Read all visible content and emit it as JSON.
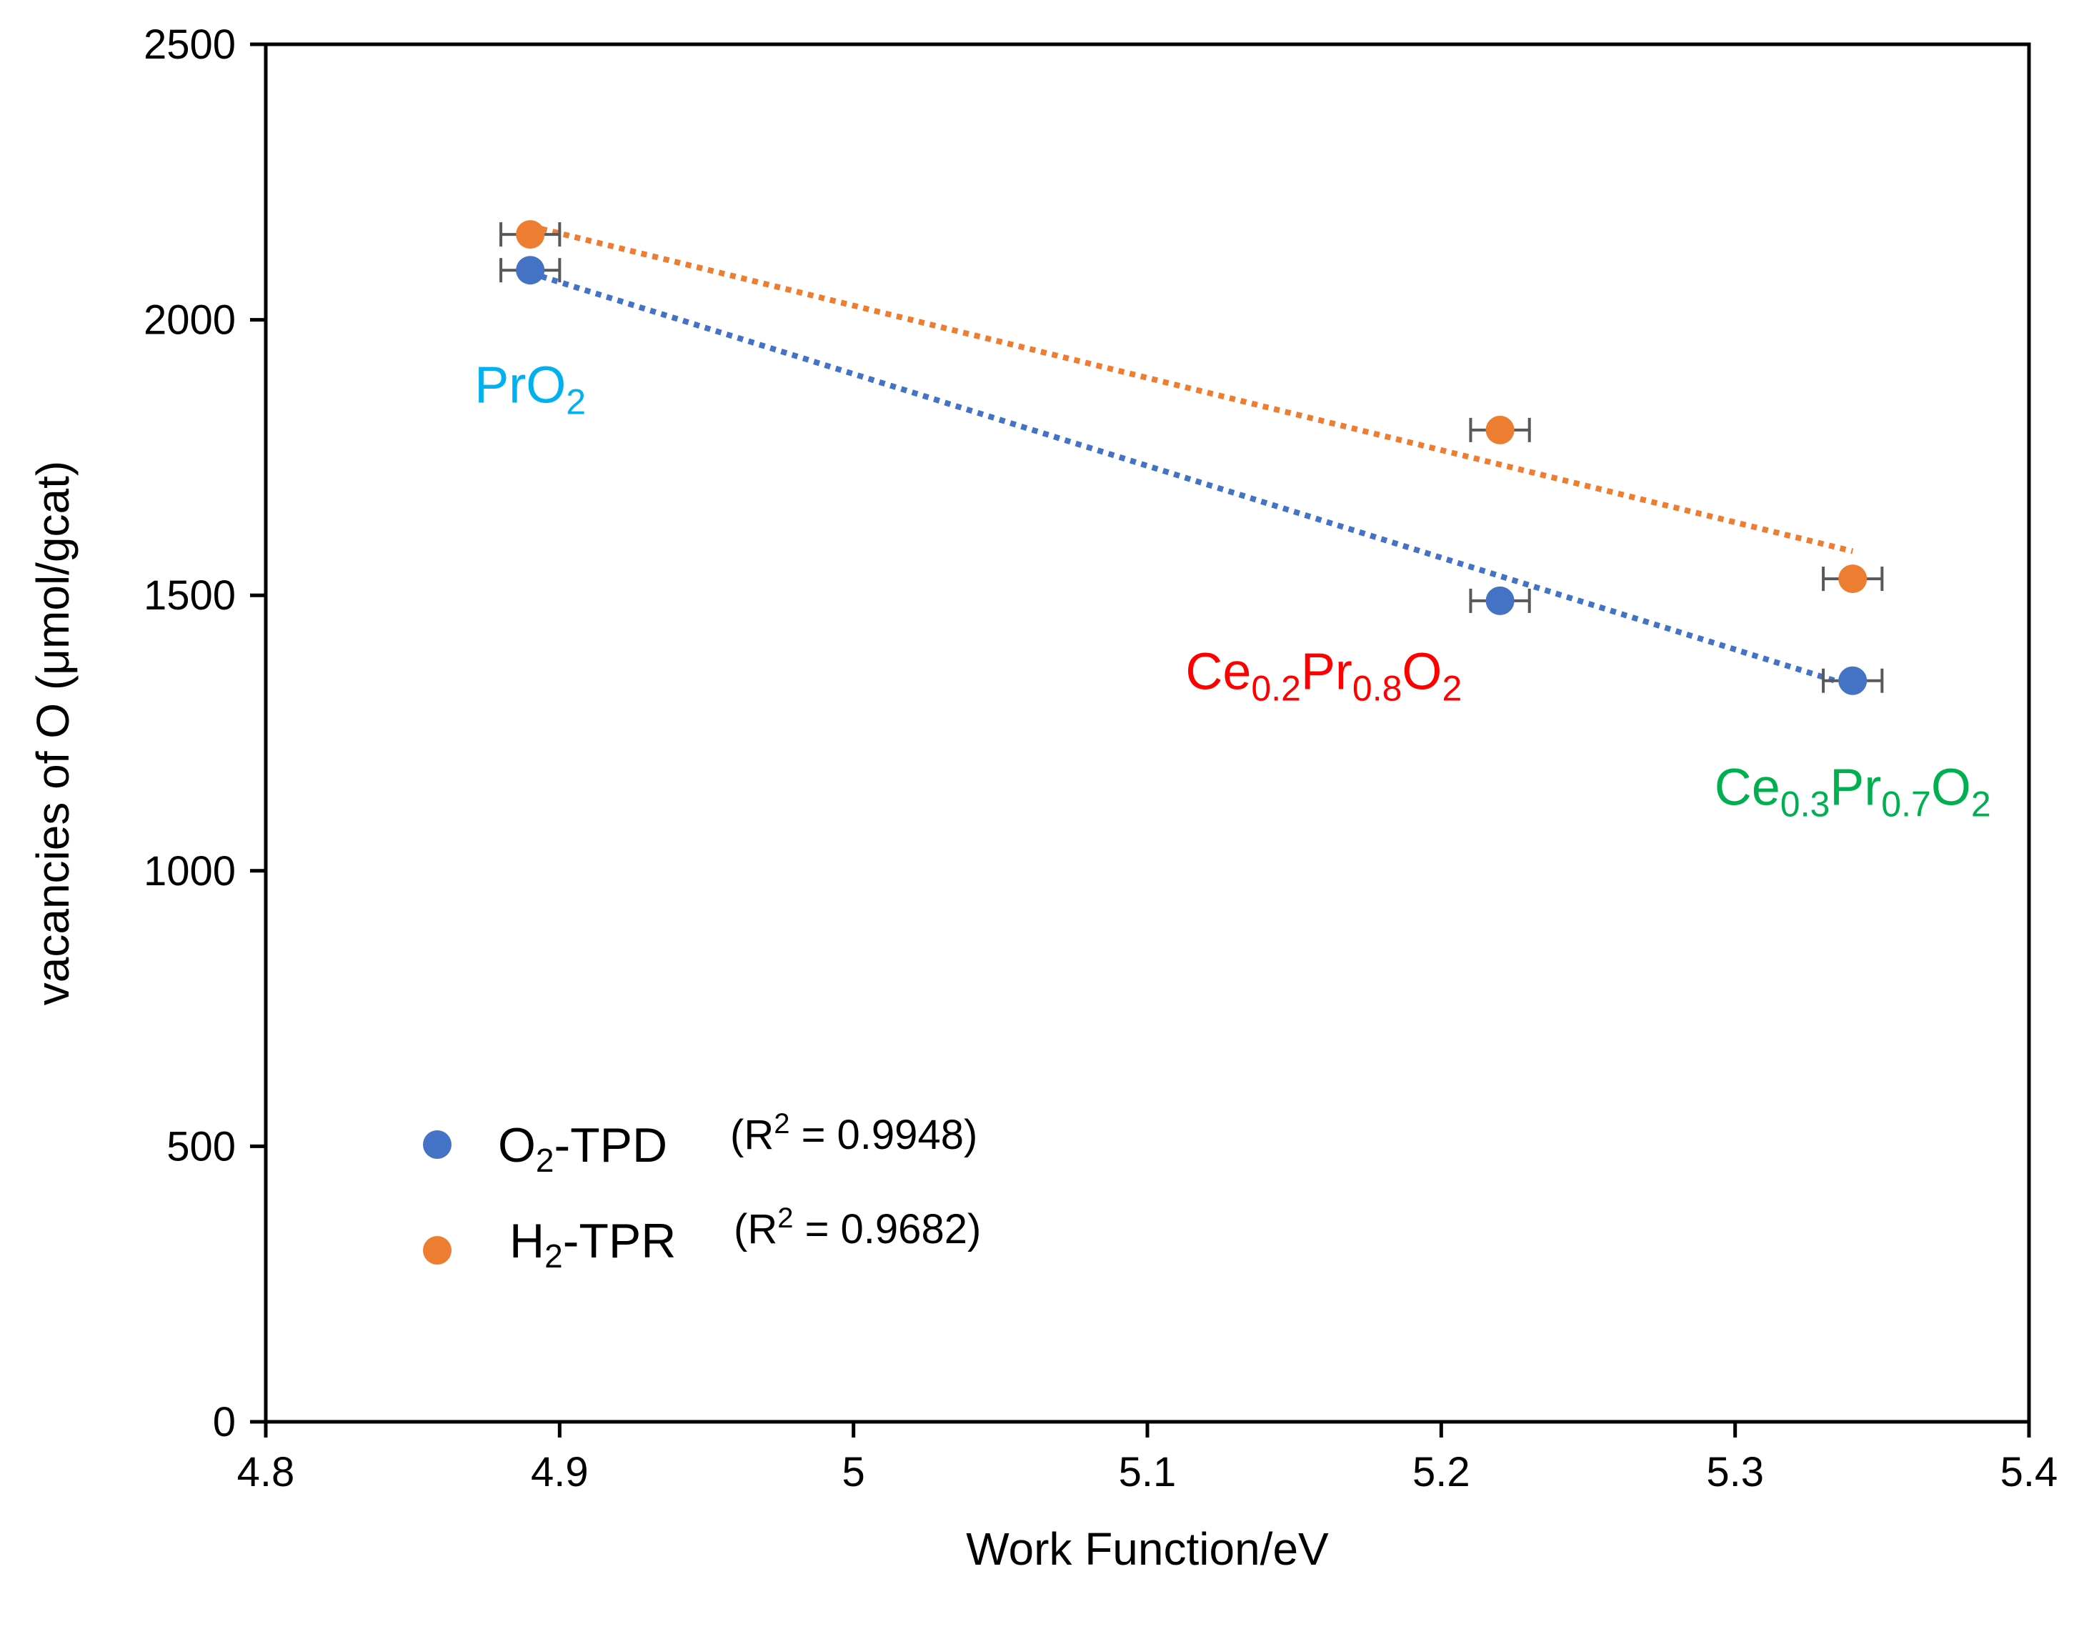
{
  "chart_data": {
    "type": "scatter",
    "title": "",
    "xlabel": "Work Function/eV",
    "ylabel": "vacancies of O (μmol/gcat)",
    "xlim": [
      4.8,
      5.4
    ],
    "ylim": [
      0,
      2500
    ],
    "x_ticks": [
      4.8,
      4.9,
      5.0,
      5.1,
      5.2,
      5.3,
      5.4
    ],
    "x_tick_labels": [
      "4.8",
      "4.9",
      "5",
      "5.1",
      "5.2",
      "5.3",
      "5.4"
    ],
    "y_ticks": [
      0,
      500,
      1000,
      1500,
      2000,
      2500
    ],
    "y_tick_labels": [
      "0",
      "500",
      "1000",
      "1500",
      "2000",
      "2500"
    ],
    "grid": false,
    "legend_position": "bottom-left",
    "series": [
      {
        "name": "O2-TPD",
        "legend_main": "O",
        "legend_sub": "2",
        "legend_rest": "-TPD",
        "r2_prefix": "(R",
        "r2_sup": "2",
        "r2_rest": " = 0.9948)",
        "color": "#4472c4",
        "x": [
          4.89,
          5.22,
          5.34
        ],
        "y": [
          2090,
          1490,
          1345
        ],
        "x_err": [
          0.01,
          0.01,
          0.01
        ],
        "trendline": {
          "x": [
            4.89,
            5.34
          ],
          "y": [
            2085,
            1335
          ]
        }
      },
      {
        "name": "H2-TPR",
        "legend_main": "H",
        "legend_sub": "2",
        "legend_rest": "-TPR",
        "r2_prefix": "(R",
        "r2_sup": "2",
        "r2_rest": " = 0.9682)",
        "color": "#ed7d31",
        "x": [
          4.89,
          5.22,
          5.34
        ],
        "y": [
          2155,
          1800,
          1530
        ],
        "x_err": [
          0.01,
          0.01,
          0.01
        ],
        "trendline": {
          "x": [
            4.89,
            5.34
          ],
          "y": [
            2170,
            1580
          ]
        }
      }
    ],
    "annotations": [
      {
        "id": "pro2",
        "color": "#00b0f0",
        "anchor_x": 4.89,
        "anchor_y": 1850,
        "parts": [
          {
            "text": "PrO",
            "sub": false
          },
          {
            "text": "2",
            "sub": true
          }
        ]
      },
      {
        "id": "ce02pr08o2",
        "color": "#ff0000",
        "anchor_x": 5.16,
        "anchor_y": 1330,
        "parts": [
          {
            "text": "Ce",
            "sub": false
          },
          {
            "text": "0.2",
            "sub": true
          },
          {
            "text": "Pr",
            "sub": false
          },
          {
            "text": "0.8",
            "sub": true
          },
          {
            "text": "O",
            "sub": false
          },
          {
            "text": "2",
            "sub": true
          }
        ]
      },
      {
        "id": "ce03pr07o2",
        "color": "#00b050",
        "anchor_x": 5.34,
        "anchor_y": 1120,
        "parts": [
          {
            "text": "Ce",
            "sub": false
          },
          {
            "text": "0.3",
            "sub": true
          },
          {
            "text": "Pr",
            "sub": false
          },
          {
            "text": "0.7",
            "sub": true
          },
          {
            "text": "O",
            "sub": false
          },
          {
            "text": "2",
            "sub": true
          }
        ]
      }
    ]
  }
}
